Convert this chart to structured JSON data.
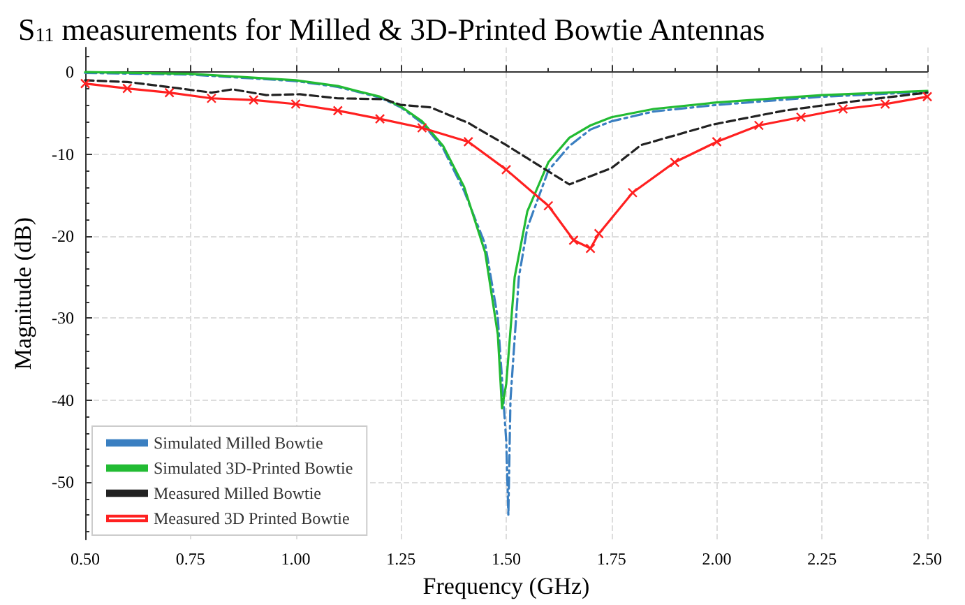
{
  "chart_data": {
    "type": "line",
    "title": "S$_{11}$ measurements for Milled & 3D-Printed Bowtie Antennas",
    "xlabel": "Frequency (GHz)",
    "ylabel": "Magnitude (dB)",
    "xlim": [
      0.5,
      2.5
    ],
    "xticks": [
      {
        "value": 0.5,
        "label": "0.50"
      },
      {
        "value": 0.75,
        "label": "0.75"
      },
      {
        "value": 1.0,
        "label": "1.00"
      },
      {
        "value": 1.25,
        "label": "1.25"
      },
      {
        "value": 1.5,
        "label": "1.50"
      },
      {
        "value": 1.75,
        "label": "1.75"
      },
      {
        "value": 2.0,
        "label": "2.00"
      },
      {
        "value": 2.25,
        "label": "2.25"
      },
      {
        "value": 2.5,
        "label": "2.50"
      }
    ],
    "ylim": [
      -57,
      3
    ],
    "yticks": [
      -50,
      -40,
      -30,
      -20,
      -10,
      0
    ],
    "grid": true,
    "legend": "bottom left",
    "series": [
      {
        "name": "Simulated Milled Bowtie",
        "color": "#3a7fc1",
        "line_style": "dashdot",
        "marker": "none",
        "x": [
          0.5,
          0.75,
          1.0,
          1.1,
          1.2,
          1.25,
          1.3,
          1.35,
          1.4,
          1.45,
          1.48,
          1.5,
          1.505,
          1.51,
          1.53,
          1.55,
          1.6,
          1.65,
          1.7,
          1.75,
          1.85,
          2.0,
          2.25,
          2.5
        ],
        "values": [
          -0.1,
          -0.3,
          -1.1,
          -1.8,
          -3.1,
          -4.3,
          -6.2,
          -9.3,
          -14.5,
          -21,
          -30,
          -45,
          -54,
          -40,
          -25,
          -19,
          -12,
          -9,
          -7,
          -6,
          -4.8,
          -4,
          -3,
          -2.4
        ]
      },
      {
        "name": "Simulated 3D-Printed Bowtie",
        "color": "#22bb33",
        "line_style": "solid",
        "marker": "none",
        "x": [
          0.5,
          0.75,
          1.0,
          1.1,
          1.2,
          1.25,
          1.3,
          1.35,
          1.4,
          1.45,
          1.48,
          1.49,
          1.5,
          1.52,
          1.55,
          1.6,
          1.65,
          1.7,
          1.75,
          1.85,
          2.0,
          2.25,
          2.5
        ],
        "values": [
          0,
          -0.2,
          -1,
          -1.7,
          -3,
          -4.2,
          -6,
          -9,
          -14,
          -22,
          -32,
          -41,
          -38,
          -25,
          -17,
          -11,
          -8,
          -6.5,
          -5.5,
          -4.5,
          -3.7,
          -2.8,
          -2.3
        ]
      },
      {
        "name": "Measured Milled Bowtie",
        "color": "#222222",
        "line_style": "dashed",
        "marker": "none",
        "x": [
          0.5,
          0.6,
          0.71,
          0.8,
          0.85,
          0.93,
          1.01,
          1.1,
          1.21,
          1.25,
          1.32,
          1.41,
          1.5,
          1.55,
          1.65,
          1.75,
          1.82,
          1.99,
          2.16,
          2.32,
          2.5
        ],
        "values": [
          -1,
          -1.2,
          -1.9,
          -2.5,
          -2.1,
          -2.8,
          -2.7,
          -3.2,
          -3.3,
          -4,
          -4.3,
          -6.2,
          -8.9,
          -10.5,
          -13.7,
          -11.7,
          -8.9,
          -6.4,
          -4.7,
          -3.6,
          -2.5
        ]
      },
      {
        "name": "Measured 3D Printed Bowtie",
        "color": "#ff2020",
        "line_style": "solid",
        "marker": "cross",
        "x": [
          0.5,
          0.6,
          0.7,
          0.8,
          0.9,
          1.0,
          1.1,
          1.2,
          1.3,
          1.41,
          1.5,
          1.6,
          1.66,
          1.7,
          1.72,
          1.8,
          1.9,
          2.0,
          2.1,
          2.2,
          2.3,
          2.4,
          2.5
        ],
        "values": [
          -1.4,
          -2,
          -2.5,
          -3.2,
          -3.4,
          -3.9,
          -4.7,
          -5.7,
          -6.8,
          -8.5,
          -11.9,
          -16.3,
          -20.5,
          -21.5,
          -19.7,
          -14.7,
          -11,
          -8.5,
          -6.5,
          -5.5,
          -4.5,
          -3.9,
          -3
        ]
      }
    ]
  }
}
